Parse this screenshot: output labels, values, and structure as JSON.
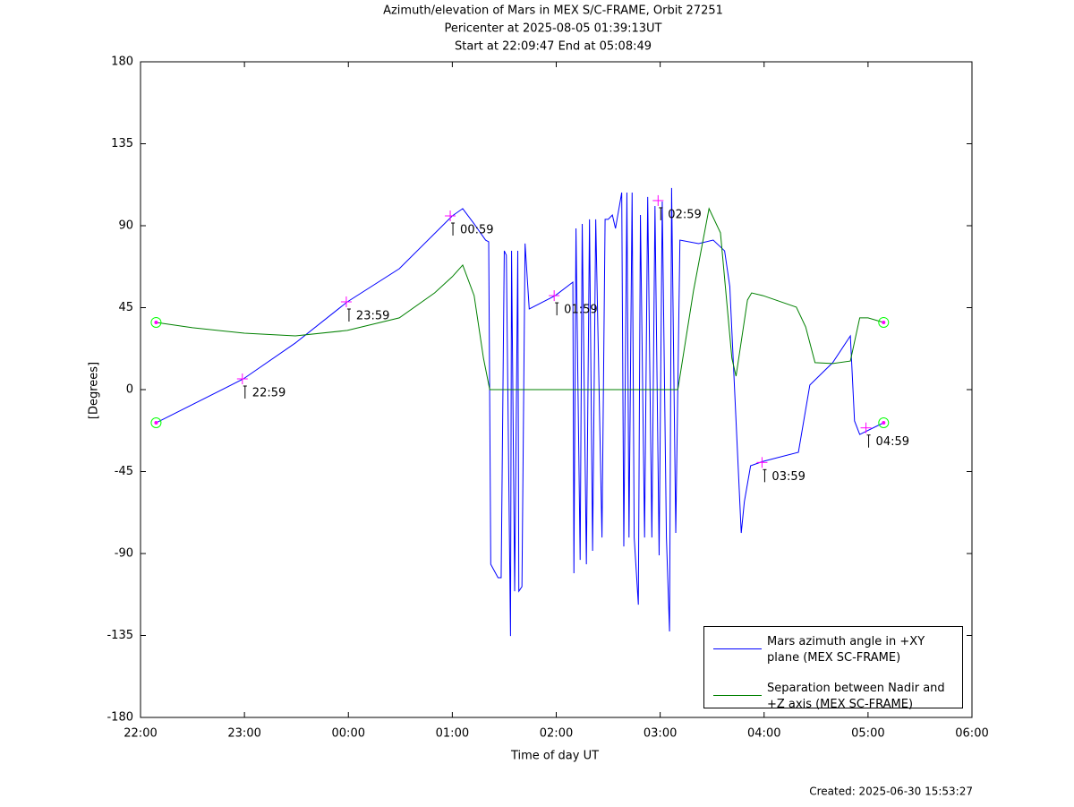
{
  "chart_data": {
    "type": "line",
    "title": "Azimuth/elevation of Mars in MEX S/C-FRAME,  Orbit 27251",
    "subtitle": "Pericenter at 2025-08-05 01:39:13UT",
    "note": "Start at 22:09:47 End at 05:08:49",
    "x_label": "Time of day UT",
    "y_label": "[Degrees]",
    "footer": "Created: 2025-06-30 15:53:27",
    "xlim": [
      22,
      30
    ],
    "xticks": [
      {
        "value": 22,
        "label": "22:00"
      },
      {
        "value": 23,
        "label": "23:00"
      },
      {
        "value": 24,
        "label": "00:00"
      },
      {
        "value": 25,
        "label": "01:00"
      },
      {
        "value": 26,
        "label": "02:00"
      },
      {
        "value": 27,
        "label": "03:00"
      },
      {
        "value": 28,
        "label": "04:00"
      },
      {
        "value": 29,
        "label": "05:00"
      },
      {
        "value": 30,
        "label": "06:00"
      }
    ],
    "ylim": [
      -180,
      180
    ],
    "yticks": [
      180,
      135,
      90,
      45,
      0,
      -45,
      -90,
      -135,
      -180
    ],
    "grid": false,
    "legend": "lower right",
    "marker_color": "#ff00ff",
    "endpoint_color": "#00ff00",
    "series": [
      {
        "name": "Mars azimuth angle in +XY plane (MEX SC-FRAME)",
        "color": "#0000ff",
        "x": [
          22.15,
          22.99,
          23.49,
          23.99,
          24.49,
          25.0,
          25.1,
          25.21,
          25.32,
          25.35,
          25.37,
          25.44,
          25.47,
          25.5,
          25.52,
          25.56,
          25.57,
          25.6,
          25.63,
          25.64,
          25.67,
          25.7,
          25.74,
          25.99,
          26.16,
          26.17,
          26.19,
          26.23,
          26.25,
          26.29,
          26.32,
          26.35,
          26.38,
          26.44,
          26.47,
          26.5,
          26.54,
          26.57,
          26.63,
          26.65,
          26.68,
          26.7,
          26.73,
          26.75,
          26.79,
          26.81,
          26.85,
          26.88,
          26.92,
          26.95,
          26.99,
          27.02,
          27.06,
          27.09,
          27.11,
          27.15,
          27.19,
          27.37,
          27.51,
          27.62,
          27.67,
          27.71,
          27.75,
          27.78,
          27.81,
          27.87,
          27.99,
          28.33,
          28.44,
          28.66,
          28.83,
          28.87,
          28.92,
          29.15
        ],
        "values": [
          -18.2,
          5.9,
          25.6,
          48.2,
          66.4,
          95.4,
          99.4,
          91.0,
          82.1,
          81.2,
          -95.9,
          -103.3,
          -103.3,
          76.2,
          73.8,
          -135.3,
          76.2,
          -110.7,
          76.2,
          -110.7,
          -108.2,
          80.2,
          44.3,
          51.6,
          59.0,
          -100.8,
          88.5,
          -93.5,
          91.0,
          -95.9,
          93.5,
          -88.5,
          93.5,
          -81.2,
          93.5,
          93.5,
          95.9,
          88.5,
          108.2,
          -86.1,
          108.2,
          -81.2,
          108.2,
          -81.2,
          -118.1,
          95.9,
          -81.2,
          105.8,
          -81.2,
          100.8,
          -91.0,
          103.3,
          -81.2,
          -132.8,
          110.7,
          -78.7,
          82.1,
          80.2,
          82.1,
          76.2,
          56.6,
          7.4,
          -41.8,
          -78.7,
          -61.5,
          -41.8,
          -39.4,
          -34.4,
          2.5,
          14.8,
          29.5,
          -17.2,
          -24.6,
          -18.2
        ]
      },
      {
        "name": "Separation between Nadir and +Z axis (MEX SC-FRAME)",
        "color": "#008000",
        "x": [
          22.15,
          22.5,
          23.0,
          23.49,
          23.99,
          24.49,
          24.83,
          25.0,
          25.1,
          25.21,
          25.3,
          25.36,
          27.17,
          27.32,
          27.47,
          27.58,
          27.69,
          27.73,
          27.84,
          27.88,
          27.99,
          28.31,
          28.4,
          28.49,
          28.66,
          28.83,
          28.92,
          29.0,
          29.15
        ],
        "values": [
          36.9,
          34,
          31,
          29.5,
          32.5,
          39.4,
          53.1,
          62.0,
          68.4,
          51.6,
          17.2,
          0,
          0,
          54.1,
          99.4,
          86.1,
          17.2,
          7.4,
          49.2,
          53.1,
          51.6,
          45.3,
          34.4,
          14.8,
          14.3,
          15.7,
          39.4,
          39.4,
          36.9
        ]
      }
    ],
    "annotations": [
      {
        "x": 22.98,
        "y": 5.9,
        "label": "22:59"
      },
      {
        "x": 23.98,
        "y": 48.2,
        "label": "23:59"
      },
      {
        "x": 24.98,
        "y": 95.4,
        "label": "00:59"
      },
      {
        "x": 25.98,
        "y": 51.6,
        "label": "01:59"
      },
      {
        "x": 26.98,
        "y": 103.8,
        "label": "02:59"
      },
      {
        "x": 27.98,
        "y": -40,
        "label": "03:59"
      },
      {
        "x": 28.98,
        "y": -21,
        "label": "04:59"
      }
    ]
  }
}
